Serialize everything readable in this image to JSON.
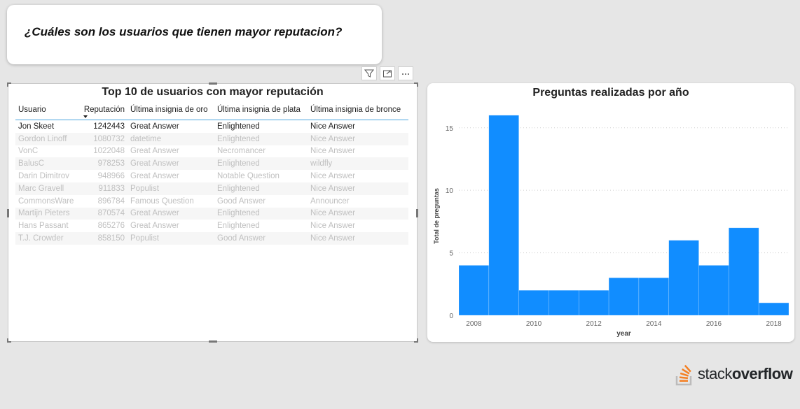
{
  "question": {
    "text": "¿Cuáles son los usuarios que tienen mayor reputacion?"
  },
  "visual_header": {
    "icons": [
      "filter-icon",
      "focus-mode-icon",
      "more-options-icon"
    ]
  },
  "table": {
    "title": "Top 10 de usuarios con mayor reputación",
    "headers": [
      "Usuario",
      "Reputación",
      "Última insignia de oro",
      "Última insignia de plata",
      "Última insignia de bronce"
    ],
    "sort_column": "Reputación",
    "rows": [
      [
        "Jon Skeet",
        "1242443",
        "Great Answer",
        "Enlightened",
        "Nice Answer"
      ],
      [
        "Gordon Linoff",
        "1080732",
        "datetime",
        "Enlightened",
        "Nice Answer"
      ],
      [
        "VonC",
        "1022048",
        "Great Answer",
        "Necromancer",
        "Nice Answer"
      ],
      [
        "BalusC",
        "978253",
        "Great Answer",
        "Enlightened",
        "wildfly"
      ],
      [
        "Darin Dimitrov",
        "948966",
        "Great Answer",
        "Notable Question",
        "Nice Answer"
      ],
      [
        "Marc Gravell",
        "911833",
        "Populist",
        "Enlightened",
        "Nice Answer"
      ],
      [
        "CommonsWare",
        "896784",
        "Famous Question",
        "Good Answer",
        "Announcer"
      ],
      [
        "Martijn Pieters",
        "870574",
        "Great Answer",
        "Enlightened",
        "Nice Answer"
      ],
      [
        "Hans Passant",
        "865276",
        "Great Answer",
        "Enlightened",
        "Nice Answer"
      ],
      [
        "T.J. Crowder",
        "858150",
        "Populist",
        "Good Answer",
        "Nice Answer"
      ]
    ]
  },
  "chart_data": {
    "type": "bar",
    "title": "Preguntas realizadas por año",
    "xlabel": "year",
    "ylabel": "Total de preguntas",
    "bins": [
      {
        "start": 2007.5,
        "end": 2008.5,
        "value": 4
      },
      {
        "start": 2008.5,
        "end": 2009.5,
        "value": 16
      },
      {
        "start": 2009.5,
        "end": 2010.5,
        "value": 2
      },
      {
        "start": 2010.5,
        "end": 2011.5,
        "value": 2
      },
      {
        "start": 2011.5,
        "end": 2012.5,
        "value": 2
      },
      {
        "start": 2012.5,
        "end": 2013.5,
        "value": 3
      },
      {
        "start": 2013.5,
        "end": 2014.5,
        "value": 3
      },
      {
        "start": 2014.5,
        "end": 2015.5,
        "value": 6
      },
      {
        "start": 2015.5,
        "end": 2016.5,
        "value": 4
      },
      {
        "start": 2016.5,
        "end": 2017.5,
        "value": 7
      },
      {
        "start": 2017.5,
        "end": 2018.5,
        "value": 1
      }
    ],
    "xlim": [
      2007.5,
      2018.5
    ],
    "ylim": [
      0,
      17
    ],
    "xticks": [
      2008,
      2010,
      2012,
      2014,
      2016,
      2018
    ],
    "yticks": [
      0,
      5,
      10,
      15
    ],
    "grid": true,
    "color": "#118dff"
  },
  "logo": {
    "text_light": "stack",
    "text_bold": "overflow",
    "color": "#f48024"
  }
}
